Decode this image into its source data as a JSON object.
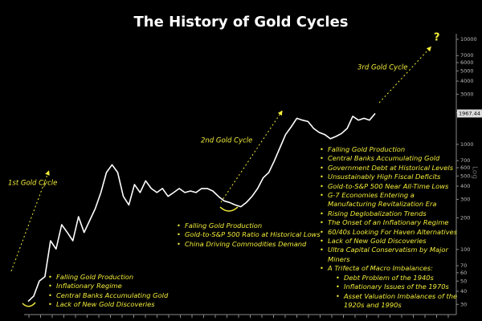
{
  "chart_data": {
    "type": "line",
    "title": "The History of Gold Cycles",
    "series": [
      {
        "name": "Gold",
        "color": "#ffffff",
        "values": [
          32,
          36,
          50,
          55,
          121,
          101,
          172,
          145,
          121,
          205,
          145,
          188,
          245,
          348,
          540,
          640,
          540,
          320,
          265,
          415,
          348,
          450,
          380,
          348,
          380,
          320,
          348,
          380,
          348,
          360,
          348,
          380,
          380,
          360,
          320,
          290,
          280,
          265,
          255,
          280,
          320,
          380,
          480,
          540,
          700,
          930,
          1240,
          1470,
          1770,
          1700,
          1650,
          1420,
          1300,
          1240,
          1130,
          1190,
          1270,
          1420,
          1850,
          1700,
          1770,
          1700,
          1967.44
        ]
      }
    ],
    "last_value_label": "1967.44",
    "log_scale": true,
    "ylim": [
      24,
      11300
    ],
    "yticks": [
      10000,
      7000,
      6000,
      5000,
      4000,
      3000,
      2000,
      1000,
      700,
      600,
      500,
      400,
      300,
      200,
      100,
      70,
      60,
      50,
      40,
      30
    ],
    "y_axis_label": "Log",
    "cycle_labels": [
      "1st Gold Cycle",
      "2nd Gold Cycle",
      "3rd Gold Cycle",
      "?"
    ],
    "notes": [
      [
        "Falling Gold Production",
        "Inflationary Regime",
        "Central Banks Accumulating Gold",
        "Lack of New Gold Discoveries"
      ],
      [
        "Falling Gold Production",
        "Gold-to-S&P 500 Ratio at Historical Lows",
        "China Driving Commodities Demand"
      ],
      [
        "Falling Gold Production",
        "Central Banks Accumulating Gold",
        "Government Debt at Historical Levels",
        "Unsustainably High Fiscal Deficits",
        "Gold-to-S&P 500 Near All-Time Lows",
        "G-7 Economies Entering a Manufacturing Revitalization Era",
        "Rising Deglobalization Trends",
        "The Onset of an Inflationary Regime",
        "60/40s Looking For Haven Alternatives",
        "Lack of New Gold Discoveries",
        "Ultra Capital Conservatism by Major Miners",
        {
          "text": "A Trifecta of Macro Imbalances:",
          "items": [
            "Debt Problem of the 1940s",
            "Inflationary Issues of the 1970s",
            "Asset Valuation Imbalances of the 1920s and 1990s"
          ]
        }
      ]
    ]
  }
}
